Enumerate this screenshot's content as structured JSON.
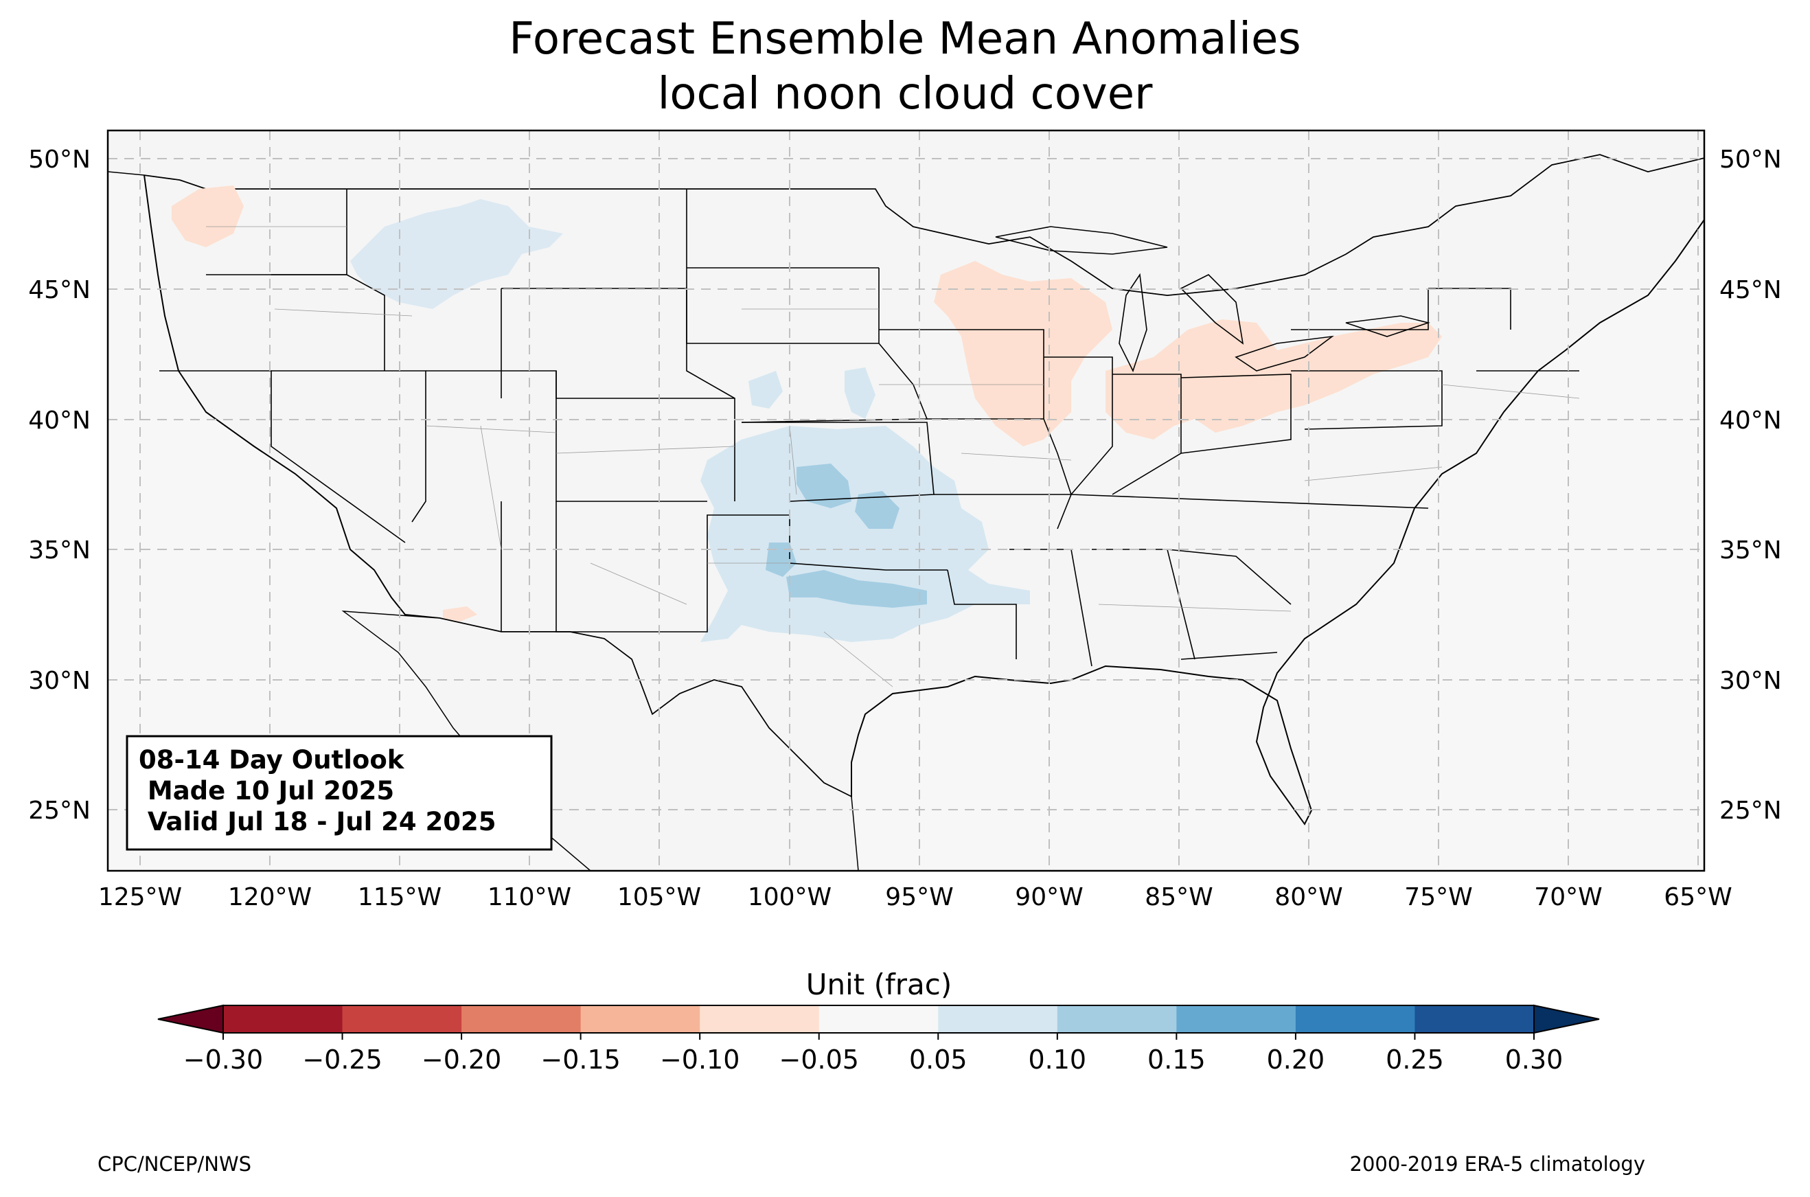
{
  "title_line1": "Forecast Ensemble Mean Anomalies",
  "title_line2": "local noon cloud cover",
  "info_box": {
    "line1": "08-14 Day Outlook",
    "line2": " Made 10 Jul 2025",
    "line3": " Valid Jul 18 - Jul 24 2025"
  },
  "lon_ticks": [
    "125°W",
    "120°W",
    "115°W",
    "110°W",
    "105°W",
    "100°W",
    "95°W",
    "90°W",
    "85°W",
    "80°W",
    "75°W",
    "70°W",
    "65°W"
  ],
  "lat_ticks": [
    "50°N",
    "45°N",
    "40°N",
    "35°N",
    "30°N",
    "25°N"
  ],
  "map_extent": {
    "lon": [
      -126.2,
      -64.8
    ],
    "lat": [
      22.8,
      51.2
    ]
  },
  "colorbar": {
    "label": "Unit (frac)",
    "ticks": [
      "−0.30",
      "−0.25",
      "−0.20",
      "−0.15",
      "−0.10",
      "−0.05",
      "0.05",
      "0.10",
      "0.15",
      "0.20",
      "0.25",
      "0.30"
    ],
    "colors": [
      "#a11928",
      "#c8433f",
      "#e27e66",
      "#f6b598",
      "#fde0d1",
      "#f7f7f7",
      "#d6e7f1",
      "#a4cde2",
      "#65a9d1",
      "#3180bb",
      "#1b5395"
    ],
    "under_color": "#67001f",
    "over_color": "#053061"
  },
  "footer_left": "CPC/NCEP/NWS",
  "footer_right": "2000-2019 ERA-5 climatology"
}
